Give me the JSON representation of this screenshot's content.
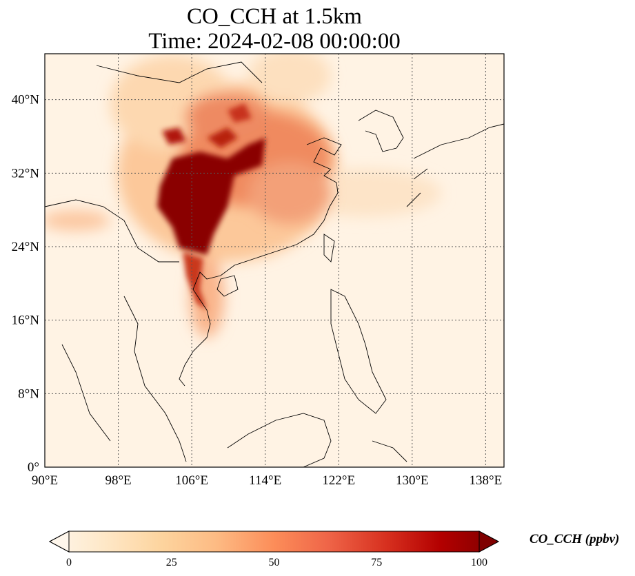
{
  "title": "CO_CCH at 1.5km",
  "subtitle": "Time: 2024-02-08 00:00:00",
  "map": {
    "lon_ticks": [
      "90°E",
      "98°E",
      "106°E",
      "114°E",
      "122°E",
      "130°E",
      "138°E"
    ],
    "lat_ticks": [
      "0°",
      "8°N",
      "16°N",
      "24°N",
      "32°N",
      "40°N"
    ],
    "lon_range": [
      90,
      140
    ],
    "lat_range": [
      0,
      45
    ],
    "gridlines": true,
    "colormap": "OrRd",
    "colors": {
      "low": "#fff7ec",
      "mid": "#fc8d59",
      "high": "#7f0000",
      "coast": "#000000",
      "grid": "#555555"
    }
  },
  "colorbar": {
    "label": "CO_CCH (ppbv)",
    "ticks": [
      "0",
      "25",
      "50",
      "75",
      "100"
    ],
    "range": [
      0,
      100
    ],
    "extend": "both"
  }
}
